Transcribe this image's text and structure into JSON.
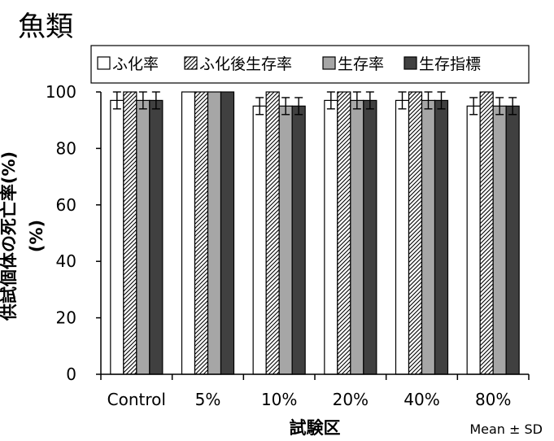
{
  "title": "魚類",
  "note": "Mean ± SD",
  "chart_data": {
    "type": "bar",
    "ylabel": "供試個体の死亡率(%)\n(%)",
    "ylabel_lines": [
      "供試個体の死亡率(%)",
      "(%)"
    ],
    "xlabel": "試験区",
    "ylim": [
      0,
      100
    ],
    "yticks": [
      0,
      20,
      40,
      60,
      80,
      100
    ],
    "grid": false,
    "legend_position": "top",
    "categories": [
      "Control",
      "5%",
      "10%",
      "20%",
      "40%",
      "80%"
    ],
    "series": [
      {
        "name": "ふ化率",
        "fill": "#ffffff",
        "pattern": "none",
        "values": [
          97,
          100,
          95,
          97,
          97,
          95
        ],
        "errors": [
          3,
          0,
          3,
          3,
          3,
          3
        ]
      },
      {
        "name": "ふ化後生存率",
        "fill": "#ffffff",
        "pattern": "hatch",
        "values": [
          100,
          100,
          100,
          100,
          100,
          100
        ],
        "errors": [
          0,
          0,
          0,
          0,
          0,
          0
        ]
      },
      {
        "name": "生存率",
        "fill": "#a6a6a6",
        "pattern": "none",
        "values": [
          97,
          100,
          95,
          97,
          97,
          95
        ],
        "errors": [
          3,
          0,
          3,
          3,
          3,
          3
        ]
      },
      {
        "name": "生存指標",
        "fill": "#404040",
        "pattern": "none",
        "values": [
          97,
          100,
          95,
          97,
          97,
          95
        ],
        "errors": [
          3,
          0,
          3,
          3,
          3,
          3
        ]
      }
    ]
  }
}
